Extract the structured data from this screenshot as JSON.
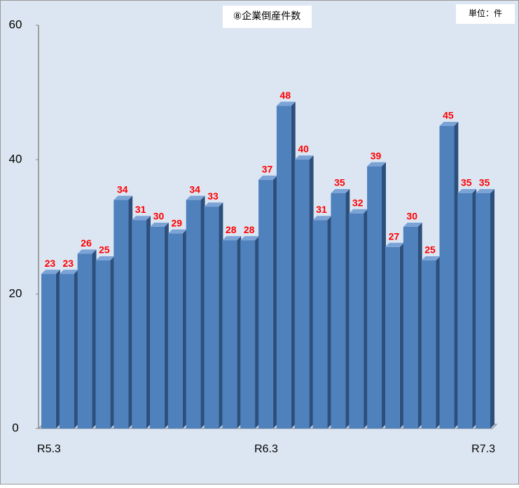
{
  "chart_data": {
    "type": "bar",
    "title": "⑧企業倒産件数",
    "unit_note": "単位：件",
    "categories": [
      "R5.3",
      null,
      null,
      null,
      null,
      null,
      null,
      null,
      null,
      null,
      null,
      null,
      "R6.3",
      null,
      null,
      null,
      null,
      null,
      null,
      null,
      null,
      null,
      null,
      null,
      "R7.3"
    ],
    "values": [
      23,
      23,
      26,
      25,
      34,
      31,
      30,
      29,
      34,
      33,
      28,
      28,
      37,
      48,
      40,
      31,
      35,
      32,
      39,
      27,
      30,
      25,
      45,
      35,
      35
    ],
    "color": "#4f81bd",
    "label_color": "#ff0000",
    "ylim": [
      0,
      60
    ],
    "yticks": [
      0,
      20,
      40,
      60
    ],
    "grid": false
  }
}
